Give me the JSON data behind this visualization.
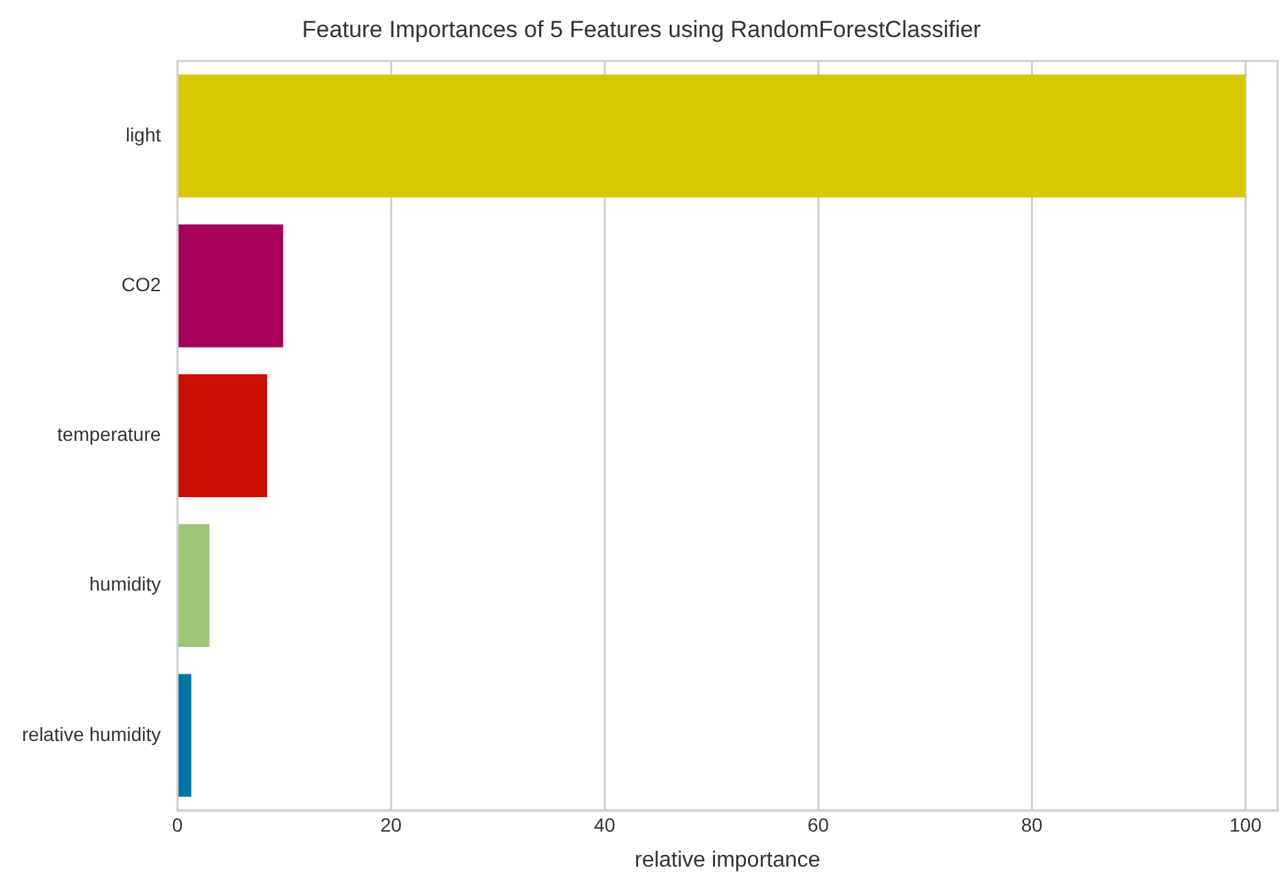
{
  "chart_data": {
    "type": "bar",
    "orientation": "horizontal",
    "title": "Feature Importances of 5 Features using RandomForestClassifier",
    "xlabel": "relative importance",
    "categories": [
      "light",
      "CO2",
      "temperature",
      "humidity",
      "relative humidity"
    ],
    "values": [
      100,
      9.9,
      8.4,
      3.0,
      1.3
    ],
    "colors": [
      "#d8c800",
      "#a5005a",
      "#c80f00",
      "#9fc47a",
      "#0074a3"
    ],
    "xlim": [
      0,
      103
    ],
    "xticks": [
      0,
      20,
      40,
      60,
      80,
      100
    ],
    "grid": "x",
    "legend": false
  }
}
